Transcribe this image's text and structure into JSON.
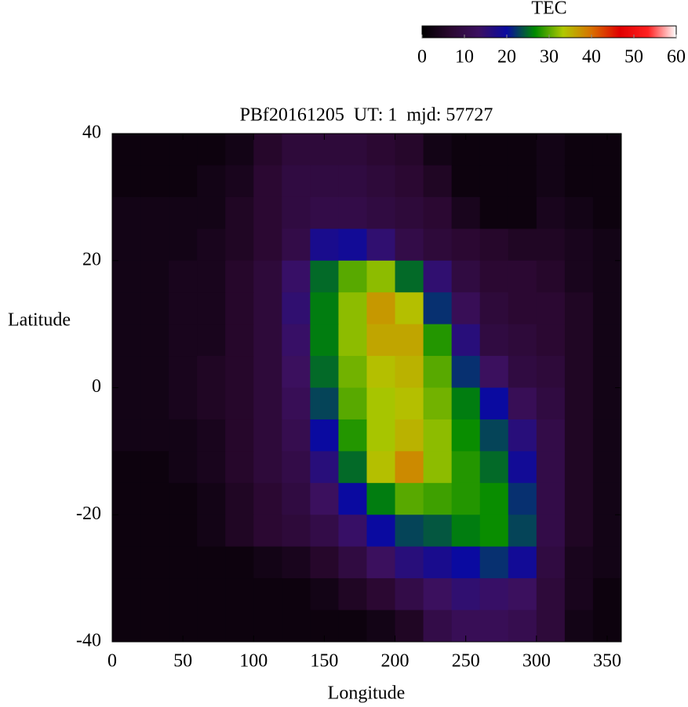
{
  "chart_data": {
    "type": "heatmap",
    "title": "PBf20161205  UT: 1  mjd: 57727",
    "xlabel": "Longitude",
    "ylabel": "Latitude",
    "xlim": [
      0,
      360
    ],
    "ylim": [
      -40,
      40
    ],
    "xticks": [
      0,
      50,
      100,
      150,
      200,
      250,
      300,
      350
    ],
    "yticks": [
      -40,
      -20,
      0,
      20,
      40
    ],
    "colorbar": {
      "label": "TEC",
      "lim": [
        0,
        60
      ],
      "ticks": [
        0,
        10,
        20,
        30,
        40,
        50,
        60
      ]
    },
    "colorscale": [
      "#000000",
      "#2a0830",
      "#3c1060",
      "#0a0aa0",
      "#008a00",
      "#b0c800",
      "#d87000",
      "#e00000",
      "#ff2020",
      "#ffffff"
    ],
    "values": [
      [
        2,
        2,
        2,
        2,
        3,
        6,
        8,
        8,
        8,
        7,
        6,
        3,
        2,
        2,
        2,
        3,
        2,
        2
      ],
      [
        2,
        2,
        2,
        3,
        4,
        7,
        9,
        9,
        9,
        8,
        7,
        5,
        2,
        2,
        2,
        3,
        2,
        2
      ],
      [
        3,
        3,
        3,
        3,
        5,
        7,
        9,
        10,
        10,
        9,
        8,
        7,
        4,
        2,
        2,
        4,
        3,
        2
      ],
      [
        3,
        3,
        3,
        4,
        5,
        7,
        10,
        18,
        19,
        15,
        10,
        8,
        7,
        6,
        5,
        5,
        4,
        3
      ],
      [
        3,
        3,
        4,
        4,
        6,
        8,
        14,
        25,
        30,
        32,
        25,
        15,
        9,
        7,
        7,
        6,
        4,
        3
      ],
      [
        3,
        3,
        4,
        4,
        6,
        8,
        15,
        26,
        32,
        37,
        34,
        22,
        12,
        8,
        7,
        7,
        5,
        3
      ],
      [
        3,
        3,
        4,
        4,
        6,
        8,
        14,
        26,
        32,
        36,
        36,
        28,
        16,
        9,
        8,
        7,
        5,
        3
      ],
      [
        3,
        3,
        4,
        5,
        6,
        8,
        13,
        25,
        31,
        34,
        35,
        30,
        22,
        13,
        9,
        8,
        5,
        3
      ],
      [
        3,
        3,
        4,
        5,
        6,
        8,
        12,
        23,
        30,
        33,
        34,
        31,
        26,
        20,
        12,
        9,
        5,
        3
      ],
      [
        3,
        3,
        3,
        4,
        6,
        8,
        11,
        20,
        28,
        33,
        35,
        32,
        27,
        23,
        16,
        10,
        5,
        3
      ],
      [
        2,
        2,
        3,
        4,
        6,
        8,
        10,
        16,
        25,
        34,
        38,
        32,
        28,
        25,
        19,
        10,
        5,
        3
      ],
      [
        2,
        2,
        2,
        3,
        5,
        7,
        9,
        13,
        20,
        26,
        30,
        29,
        28,
        27,
        22,
        10,
        5,
        3
      ],
      [
        2,
        2,
        2,
        3,
        5,
        7,
        8,
        10,
        14,
        20,
        23,
        24,
        26,
        27,
        23,
        10,
        5,
        3
      ],
      [
        2,
        2,
        2,
        2,
        2,
        3,
        4,
        6,
        9,
        13,
        16,
        18,
        20,
        22,
        19,
        9,
        4,
        3
      ],
      [
        2,
        2,
        2,
        2,
        2,
        2,
        2,
        3,
        5,
        7,
        10,
        13,
        15,
        14,
        13,
        8,
        4,
        2
      ],
      [
        2,
        2,
        2,
        2,
        2,
        2,
        2,
        2,
        2,
        3,
        5,
        10,
        12,
        12,
        11,
        8,
        3,
        2
      ]
    ]
  }
}
